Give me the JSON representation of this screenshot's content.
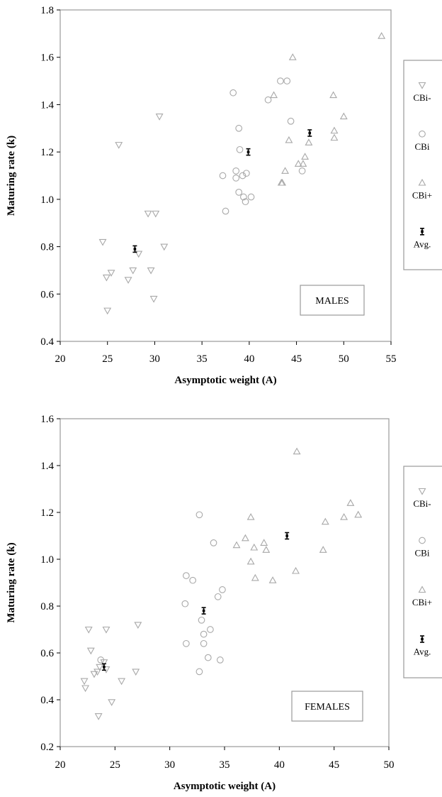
{
  "chart_data": [
    {
      "type": "scatter",
      "panel_label": "MALES",
      "xlabel": "Asymptotic weight (A)",
      "ylabel": "Maturing rate (k)",
      "xlim": [
        20,
        55
      ],
      "ylim": [
        0.4,
        1.8
      ],
      "xticks": [
        "20",
        "25",
        "30",
        "35",
        "40",
        "45",
        "50",
        "55"
      ],
      "yticks": [
        "0.4",
        "0.6",
        "0.8",
        "1.0",
        "1.2",
        "1.4",
        "1.6",
        "1.8"
      ],
      "grid": false,
      "legend_position": "right",
      "legend": [
        "CBi-",
        "CBi",
        "CBi+",
        "Avg."
      ],
      "series": [
        {
          "name": "CBi-",
          "marker": "triangle-down",
          "points": [
            [
              26.2,
              1.23
            ],
            [
              30.5,
              1.35
            ],
            [
              29.3,
              0.94
            ],
            [
              30.1,
              0.94
            ],
            [
              31,
              0.8
            ],
            [
              24.5,
              0.82
            ],
            [
              24.9,
              0.67
            ],
            [
              25.4,
              0.69
            ],
            [
              27.2,
              0.66
            ],
            [
              27.7,
              0.7
            ],
            [
              28.3,
              0.77
            ],
            [
              29.6,
              0.7
            ],
            [
              25.0,
              0.53
            ],
            [
              29.9,
              0.58
            ]
          ]
        },
        {
          "name": "CBi",
          "marker": "circle",
          "points": [
            [
              38.3,
              1.45
            ],
            [
              38.6,
              1.12
            ],
            [
              38.9,
              1.3
            ],
            [
              39.0,
              1.21
            ],
            [
              37.2,
              1.1
            ],
            [
              38.6,
              1.09
            ],
            [
              39.3,
              1.1
            ],
            [
              39.7,
              1.11
            ],
            [
              38.9,
              1.03
            ],
            [
              39.4,
              1.01
            ],
            [
              39.6,
              0.99
            ],
            [
              40.2,
              1.01
            ],
            [
              37.5,
              0.95
            ],
            [
              42.0,
              1.42
            ],
            [
              43.3,
              1.5
            ],
            [
              44.0,
              1.5
            ],
            [
              44.4,
              1.33
            ],
            [
              45.6,
              1.12
            ]
          ]
        },
        {
          "name": "CBi+",
          "marker": "triangle-up",
          "points": [
            [
              44.6,
              1.6
            ],
            [
              42.6,
              1.44
            ],
            [
              44.2,
              1.25
            ],
            [
              43.8,
              1.12
            ],
            [
              43.5,
              1.07
            ],
            [
              43.4,
              1.07
            ],
            [
              45.2,
              1.15
            ],
            [
              45.7,
              1.15
            ],
            [
              45.9,
              1.18
            ],
            [
              46.3,
              1.24
            ],
            [
              48.9,
              1.44
            ],
            [
              49.0,
              1.29
            ],
            [
              49.0,
              1.26
            ],
            [
              50.0,
              1.35
            ],
            [
              54.0,
              1.69
            ]
          ]
        },
        {
          "name": "Avg.",
          "marker": "avg-bar",
          "points": [
            [
              27.9,
              0.79
            ],
            [
              39.9,
              1.2
            ],
            [
              46.4,
              1.28
            ]
          ]
        }
      ]
    },
    {
      "type": "scatter",
      "panel_label": "FEMALES",
      "xlabel": "Asymptotic weight (A)",
      "ylabel": "Maturing rate (k)",
      "xlim": [
        20,
        50
      ],
      "ylim": [
        0.2,
        1.6
      ],
      "xticks": [
        "20",
        "25",
        "30",
        "35",
        "40",
        "45",
        "50"
      ],
      "yticks": [
        "0.2",
        "0.4",
        "0.6",
        "0.8",
        "1.0",
        "1.2",
        "1.4",
        "1.6"
      ],
      "grid": false,
      "legend_position": "right",
      "legend": [
        "CBi-",
        "CBi",
        "CBi+",
        "Avg."
      ],
      "series": [
        {
          "name": "CBi-",
          "marker": "triangle-down",
          "points": [
            [
              22.6,
              0.7
            ],
            [
              24.2,
              0.7
            ],
            [
              27.1,
              0.72
            ],
            [
              22.8,
              0.61
            ],
            [
              22.2,
              0.48
            ],
            [
              22.3,
              0.45
            ],
            [
              23.1,
              0.51
            ],
            [
              23.4,
              0.52
            ],
            [
              23.6,
              0.54
            ],
            [
              24.0,
              0.56
            ],
            [
              24.2,
              0.53
            ],
            [
              25.6,
              0.48
            ],
            [
              26.9,
              0.52
            ],
            [
              24.7,
              0.39
            ],
            [
              23.5,
              0.33
            ]
          ]
        },
        {
          "name": "CBi",
          "marker": "circle",
          "points": [
            [
              32.7,
              1.19
            ],
            [
              34.0,
              1.07
            ],
            [
              31.5,
              0.93
            ],
            [
              32.1,
              0.91
            ],
            [
              34.8,
              0.87
            ],
            [
              34.4,
              0.84
            ],
            [
              31.4,
              0.81
            ],
            [
              32.9,
              0.74
            ],
            [
              33.7,
              0.7
            ],
            [
              33.1,
              0.68
            ],
            [
              33.1,
              0.64
            ],
            [
              31.5,
              0.64
            ],
            [
              33.5,
              0.58
            ],
            [
              34.6,
              0.57
            ],
            [
              32.7,
              0.52
            ],
            [
              23.7,
              0.57
            ]
          ]
        },
        {
          "name": "CBi+",
          "marker": "triangle-up",
          "points": [
            [
              41.6,
              1.46
            ],
            [
              37.4,
              1.18
            ],
            [
              36.9,
              1.09
            ],
            [
              36.1,
              1.06
            ],
            [
              37.7,
              1.05
            ],
            [
              38.6,
              1.07
            ],
            [
              38.8,
              1.04
            ],
            [
              37.4,
              0.99
            ],
            [
              37.8,
              0.92
            ],
            [
              39.4,
              0.91
            ],
            [
              41.5,
              0.95
            ],
            [
              44.2,
              1.16
            ],
            [
              44.0,
              1.04
            ],
            [
              45.9,
              1.18
            ],
            [
              46.5,
              1.24
            ],
            [
              47.2,
              1.19
            ]
          ]
        },
        {
          "name": "Avg.",
          "marker": "avg-bar",
          "points": [
            [
              24.0,
              0.54
            ],
            [
              33.1,
              0.78
            ],
            [
              40.7,
              1.1
            ]
          ]
        }
      ]
    }
  ]
}
